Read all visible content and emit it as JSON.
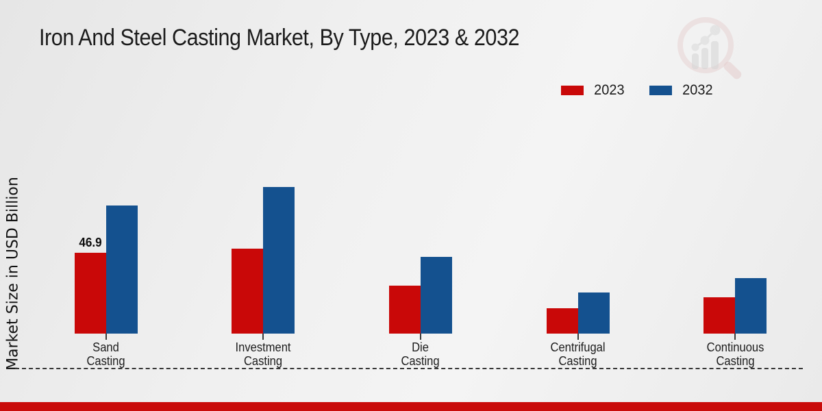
{
  "page": {
    "title": "Iron And Steel Casting Market, By Type, 2023 & 2032",
    "watermark_icon": "magnifier-growth-chart-logo"
  },
  "chart_data": {
    "type": "bar",
    "title": "Iron And Steel Casting Market, By Type, 2023 & 2032",
    "xlabel": "",
    "ylabel": "Market Size in USD Billion",
    "ylim": [
      0,
      95
    ],
    "grid": "zero-baseline-dashed-only",
    "legend_position": "top-right",
    "categories": [
      "Sand Casting",
      "Investment Casting",
      "Die Casting",
      "Centrifugal Casting",
      "Continuous Casting"
    ],
    "series": [
      {
        "name": "2023",
        "color": "#c90808",
        "values": [
          46.9,
          49.3,
          27.8,
          14.7,
          21.0
        ]
      },
      {
        "name": "2032",
        "color": "#14518f",
        "values": [
          74.3,
          85.0,
          44.5,
          23.8,
          32.2
        ]
      }
    ],
    "annotations": [
      {
        "series": "2023",
        "category_index": 0,
        "text": "46.9"
      }
    ]
  },
  "colors": {
    "series_2023": "#c90808",
    "series_2032": "#14518f",
    "footer_band": "#c90b0a",
    "baseline": "#383838"
  },
  "footer": {}
}
